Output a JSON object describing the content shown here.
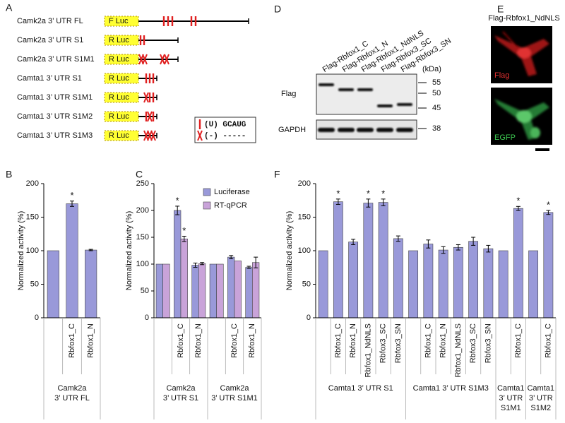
{
  "panel_labels": [
    "A",
    "D",
    "E"
  ],
  "constructs": {
    "items": [
      {
        "name": "Camk2a 3’ UTR FL",
        "reporter": "F Luc"
      },
      {
        "name": "Camk2a 3’ UTR S1",
        "reporter": "R Luc"
      },
      {
        "name": "Camk2a 3’ UTR S1M1",
        "reporter": "R Luc"
      },
      {
        "name": "Camta1 3’ UTR S1",
        "reporter": "R Luc"
      },
      {
        "name": "Camta1 3’ UTR S1M1",
        "reporter": "R Luc"
      },
      {
        "name": "Camta1 3’ UTR S1M2",
        "reporter": "R Luc"
      },
      {
        "name": "Camta1 3’ UTR S1M3",
        "reporter": "R Luc"
      }
    ],
    "legend": [
      "(U) GCAUG",
      "(-) -----"
    ]
  },
  "blot": {
    "lanes": [
      "Flag-Rbfox1_C",
      "Flag-Rbfox1_N",
      "Flag-Rbfox1_NdNLS",
      "Flag-Rbfox3_SC",
      "Flag-Rbfox3_SN"
    ],
    "rows": [
      "Flag",
      "GAPDH"
    ],
    "unit": "(kDa)",
    "markers": [
      55,
      50,
      45,
      38
    ]
  },
  "image": {
    "title": "Flag-Rbfox1_NdNLS",
    "channels": [
      "Flag",
      "EGFP"
    ]
  },
  "chart_data": [
    {
      "type": "bar",
      "panel": "B",
      "ylabel": "Normalized activity (%)",
      "categories": [
        null,
        "Rbfox1_C",
        "Rbfox1_N"
      ],
      "values": [
        100,
        170,
        101
      ],
      "errors": [
        null,
        4,
        1
      ],
      "annotations": [
        null,
        "*",
        null
      ],
      "color": "#9999d9",
      "groups": [
        [
          "Camk2a",
          "3’ UTR FL"
        ]
      ],
      "ylim": [
        0,
        200
      ],
      "yticks": [
        0,
        50,
        100,
        150,
        200
      ]
    },
    {
      "type": "bar",
      "panel": "C",
      "ylabel": "Normalized activity (%)",
      "categories": [
        null,
        "Rbfox1_C",
        "Rbfox1_N",
        null,
        "Rbfox1_C",
        "Rbfox1_N"
      ],
      "series": [
        {
          "name": "Luciferase",
          "color": "#9999d9",
          "values": [
            100,
            200,
            98,
            100,
            113,
            94
          ],
          "errors": [
            null,
            8,
            4,
            null,
            3,
            2
          ],
          "annotations": [
            null,
            "*",
            null,
            null,
            null,
            null
          ]
        },
        {
          "name": "RT-qPCR",
          "color": "#c9a3d9",
          "values": [
            100,
            147,
            101,
            100,
            106,
            103
          ],
          "errors": [
            null,
            5,
            2,
            null,
            null,
            10
          ],
          "annotations": [
            null,
            "*",
            null,
            null,
            null,
            null
          ]
        }
      ],
      "legend": "top-right",
      "groups": [
        [
          "Camk2a",
          "3’ UTR S1"
        ],
        [
          "Camk2a",
          "3’ UTR S1M1"
        ]
      ],
      "ylim": [
        0,
        250
      ],
      "yticks": [
        0,
        50,
        100,
        150,
        200,
        250
      ]
    },
    {
      "type": "bar",
      "panel": "F",
      "ylabel": "Normalized activity (%)",
      "categories": [
        null,
        "Rbfox1_C",
        "Rbfox1_N",
        "Rbfox1_NdNLS",
        "Rbfox3_SC",
        "Rbfox3_SN",
        null,
        "Rbfox1_C",
        "Rbfox1_N",
        "Rbfox1_NdNLS",
        "Rbfox3_SC",
        "Rbfox3_SN",
        null,
        "Rbfox1_C",
        null,
        "Rbfox1_C"
      ],
      "values": [
        100,
        173,
        113,
        171,
        172,
        118,
        100,
        110,
        101,
        105,
        114,
        103,
        100,
        163,
        100,
        157
      ],
      "errors": [
        null,
        4,
        4,
        6,
        5,
        4,
        null,
        6,
        5,
        4,
        6,
        5,
        null,
        3,
        null,
        3
      ],
      "annotations": [
        null,
        "*",
        null,
        "*",
        "*",
        null,
        null,
        null,
        null,
        null,
        null,
        null,
        null,
        "*",
        null,
        "*"
      ],
      "color": "#9999d9",
      "groups": [
        [
          "Camta1 3’ UTR S1"
        ],
        [
          "Camta1 3’ UTR S1M3"
        ],
        [
          "Camta1",
          "3’ UTR",
          "S1M1"
        ],
        [
          "Camta1",
          "3’ UTR",
          "S1M2"
        ]
      ],
      "ylim": [
        0,
        200
      ],
      "yticks": [
        0,
        50,
        100,
        150,
        200
      ]
    }
  ]
}
